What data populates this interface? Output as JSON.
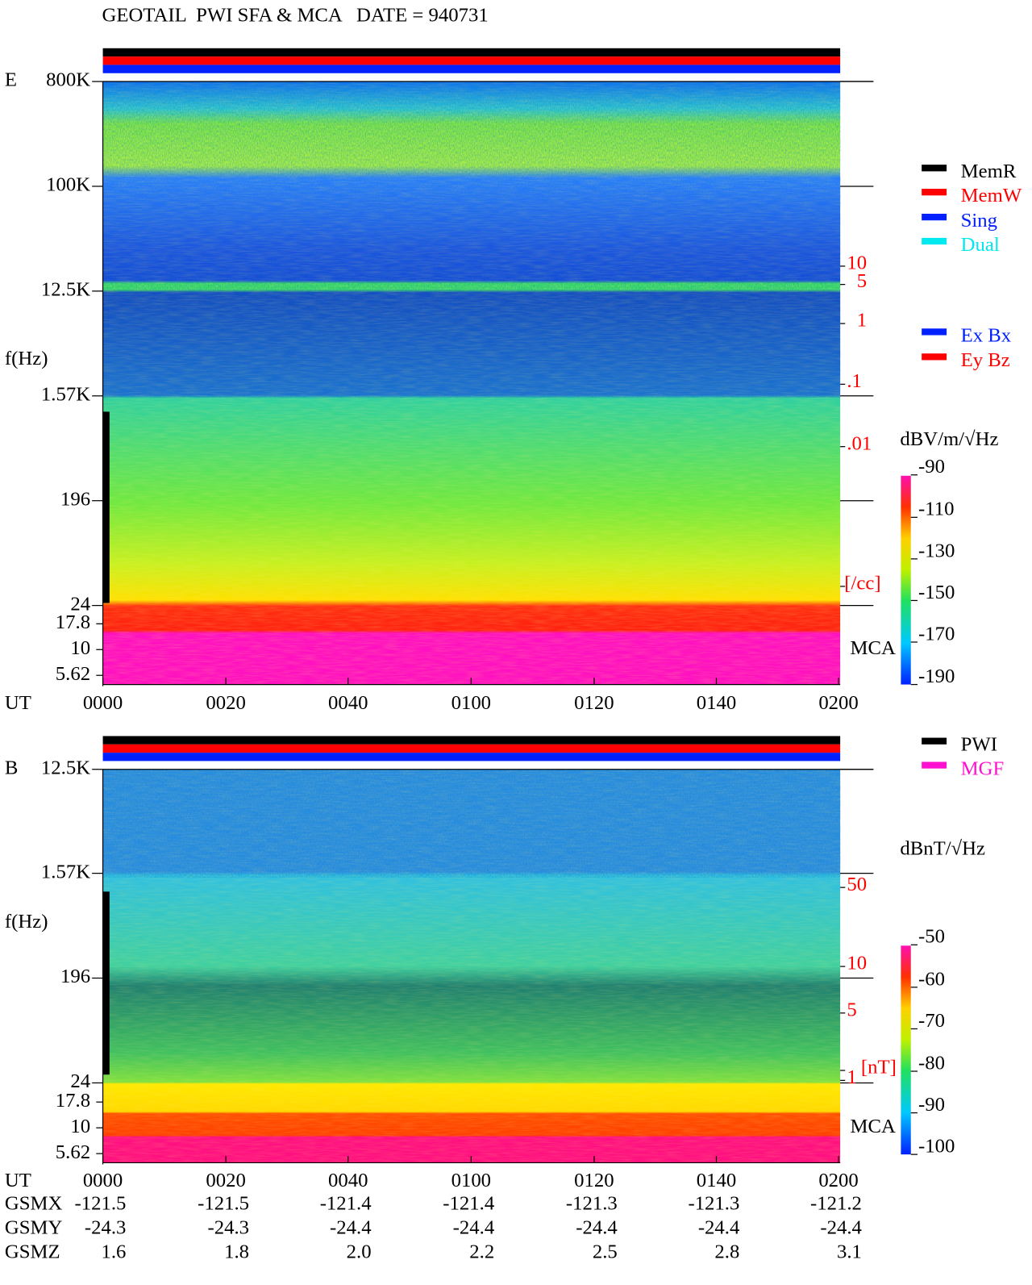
{
  "title": "GEOTAIL  PWI SFA & MCA   DATE = 940731",
  "panels": [
    {
      "label": "E",
      "y_label": "f(Hz)",
      "freq_labels": [
        "800K",
        "100K",
        "12.5K",
        "1.57K",
        "196",
        "24",
        "17.8",
        "10",
        "5.62"
      ],
      "right_labels": [
        "10",
        "5",
        "1",
        ".1",
        ".01",
        "[/cc]"
      ],
      "mca": "MCA",
      "legend": [
        "MemR",
        "MemW",
        "Sing",
        "Dual"
      ],
      "legend2": [
        "Ex Bx",
        "Ey Bz"
      ],
      "unit": "dBV/m/√Hz",
      "colorbar_ticks": [
        "-90",
        "-110",
        "-130",
        "-150",
        "-170",
        "-190"
      ],
      "ut_label": "UT",
      "ut_ticks": [
        "0000",
        "0020",
        "0040",
        "0100",
        "0120",
        "0140",
        "0200"
      ]
    },
    {
      "label": "B",
      "y_label": "f(Hz)",
      "freq_labels": [
        "12.5K",
        "1.57K",
        "196",
        "24",
        "17.8",
        "10",
        "5.62"
      ],
      "right_labels": [
        "50",
        "10",
        "5",
        "1",
        "[nT]"
      ],
      "mca": "MCA",
      "legend": [
        "PWI",
        "MGF"
      ],
      "unit": "dBnT/√Hz",
      "colorbar_ticks": [
        "-50",
        "-60",
        "-70",
        "-80",
        "-90",
        "-100"
      ],
      "ut_label": "UT",
      "ut_ticks": [
        "0000",
        "0020",
        "0040",
        "0100",
        "0120",
        "0140",
        "0200"
      ]
    }
  ],
  "orbit": [
    {
      "label": "GSMX",
      "values": [
        "-121.5",
        "-121.5",
        "-121.4",
        "-121.4",
        "-121.3",
        "-121.3",
        "-121.2"
      ]
    },
    {
      "label": "GSMY",
      "values": [
        "-24.3",
        "-24.3",
        "-24.4",
        "-24.4",
        "-24.4",
        "-24.4",
        "-24.4"
      ]
    },
    {
      "label": "GSMZ",
      "values": [
        "1.6",
        "1.8",
        "2.0",
        "2.2",
        "2.5",
        "2.8",
        "3.1"
      ]
    }
  ]
}
